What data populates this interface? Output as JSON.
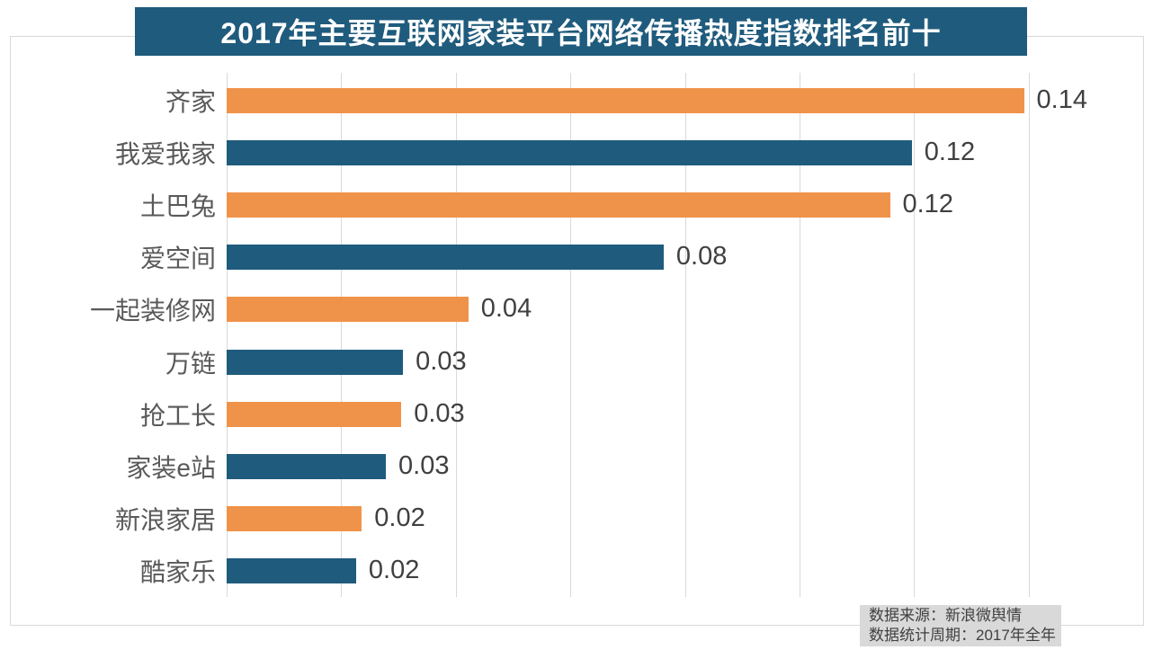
{
  "title": {
    "text": "2017年主要互联网家装平台网络传播热度指数排名前十",
    "bg_color": "#1f5b7d",
    "text_color": "#ffffff"
  },
  "chart_data": {
    "type": "bar",
    "orientation": "horizontal",
    "title": "2017年主要互联网家装平台网络传播热度指数排名前十",
    "categories": [
      "齐家",
      "我爱我家",
      "土巴兔",
      "爱空间",
      "一起装修网",
      "万链",
      "抢工长",
      "家装e站",
      "新浪家居",
      "酷家乐"
    ],
    "values": [
      0.14,
      0.12,
      0.12,
      0.08,
      0.04,
      0.03,
      0.03,
      0.03,
      0.02,
      0.02
    ],
    "value_labels": [
      "0.14",
      "0.12",
      "0.12",
      "0.08",
      "0.04",
      "0.03",
      "0.03",
      "0.03",
      "0.02",
      "0.02"
    ],
    "bar_lengths_exact": [
      0.1392,
      0.1196,
      0.1158,
      0.0763,
      0.0422,
      0.0308,
      0.0305,
      0.0278,
      0.0236,
      0.0226
    ],
    "bar_colors": [
      "#f0934a",
      "#1f5b7d",
      "#f0934a",
      "#1f5b7d",
      "#f0934a",
      "#1f5b7d",
      "#f0934a",
      "#1f5b7d",
      "#f0934a",
      "#1f5b7d"
    ],
    "xlabel": "",
    "ylabel": "",
    "xlim": [
      0,
      0.16
    ],
    "grid_step": 0.02,
    "grid": true,
    "legend": false
  },
  "colors": {
    "orange": "#f0934a",
    "blue": "#1f5b7d",
    "grid": "#d9d9d9",
    "category_label": "#595959",
    "value_label": "#404040",
    "frame_border": "#d9d9d9"
  },
  "footer": {
    "lines": [
      "数据来源：新浪微舆情",
      "数据统计周期：2017年全年"
    ],
    "bg_color": "#d9d9d9",
    "text_color": "#404040"
  }
}
